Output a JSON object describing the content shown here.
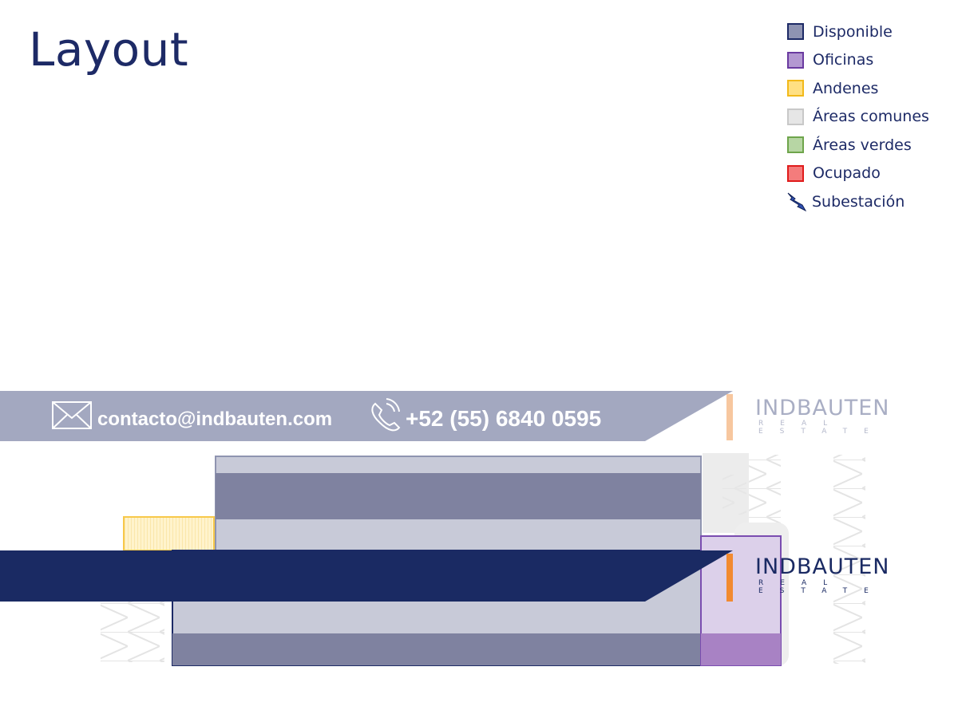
{
  "page": {
    "title": "Layout"
  },
  "legend": {
    "items": [
      {
        "label": "Disponible",
        "fill": "#8e93b2",
        "border": "#1d2a66"
      },
      {
        "label": "Oficinas",
        "fill": "#b398d1",
        "border": "#6a3aa0"
      },
      {
        "label": "Andenes",
        "fill": "#ffe083",
        "border": "#f2b91a"
      },
      {
        "label": "Áreas comunes",
        "fill": "#e6e6e6",
        "border": "#c8c8c8"
      },
      {
        "label": "Áreas verdes",
        "fill": "#b7d6a4",
        "border": "#6ea54b"
      },
      {
        "label": "Ocupado",
        "fill": "#f47c7c",
        "border": "#e01b1b"
      }
    ],
    "substation_label": "Subestación",
    "substation_icon": "lightning-bolt-icon"
  },
  "contact": {
    "email": "contacto@indbauten.com",
    "phone": "+52 (55) 6840 0595",
    "email_icon": "envelope-icon",
    "phone_icon": "phone-icon"
  },
  "brand": {
    "name": "INDBAUTEN",
    "tagline": "REAL ESTATE",
    "primary_color": "#1a2a63",
    "accent_color": "#f28a30"
  }
}
